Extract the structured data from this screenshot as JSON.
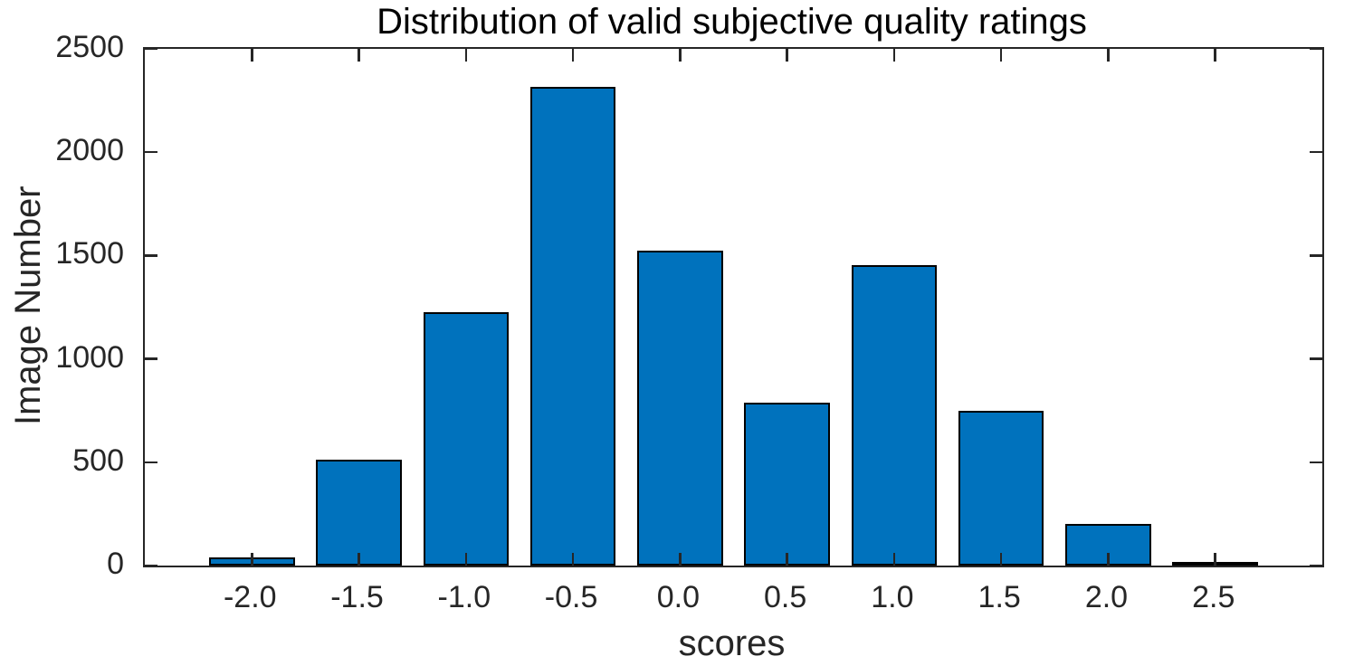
{
  "figure": {
    "title": "Distribution of valid subjective quality ratings",
    "xlabel": "scores",
    "ylabel": "Image Number"
  },
  "chart_data": {
    "type": "bar",
    "title": "Distribution of valid subjective quality ratings",
    "xlabel": "scores",
    "ylabel": "Image Number",
    "categories": [
      "-2.0",
      "-1.5",
      "-1.0",
      "-0.5",
      "0.0",
      "0.5",
      "1.0",
      "1.5",
      "2.0",
      "2.5"
    ],
    "x_numeric": [
      -2.0,
      -1.5,
      -1.0,
      -0.5,
      0.0,
      0.5,
      1.0,
      1.5,
      2.0,
      2.5
    ],
    "values": [
      38,
      512,
      1228,
      2314,
      1524,
      790,
      1453,
      750,
      201,
      17
    ],
    "xlim": [
      -2.5,
      3.0
    ],
    "ylim": [
      0,
      2500
    ],
    "y_ticks": [
      0,
      500,
      1000,
      1500,
      2000,
      2500
    ],
    "y_tick_labels": [
      "0",
      "500",
      "1000",
      "1500",
      "2000",
      "2500"
    ],
    "bar_width_fraction": 0.8,
    "grid": false,
    "legend": null,
    "colors": {
      "bar_fill": "#0072BD",
      "bar_edge": "#000000",
      "axis": "#262626",
      "tick_label_text": "#262626",
      "axis_label_text": "#262626",
      "title_text": "#000000",
      "background": "#ffffff"
    }
  }
}
